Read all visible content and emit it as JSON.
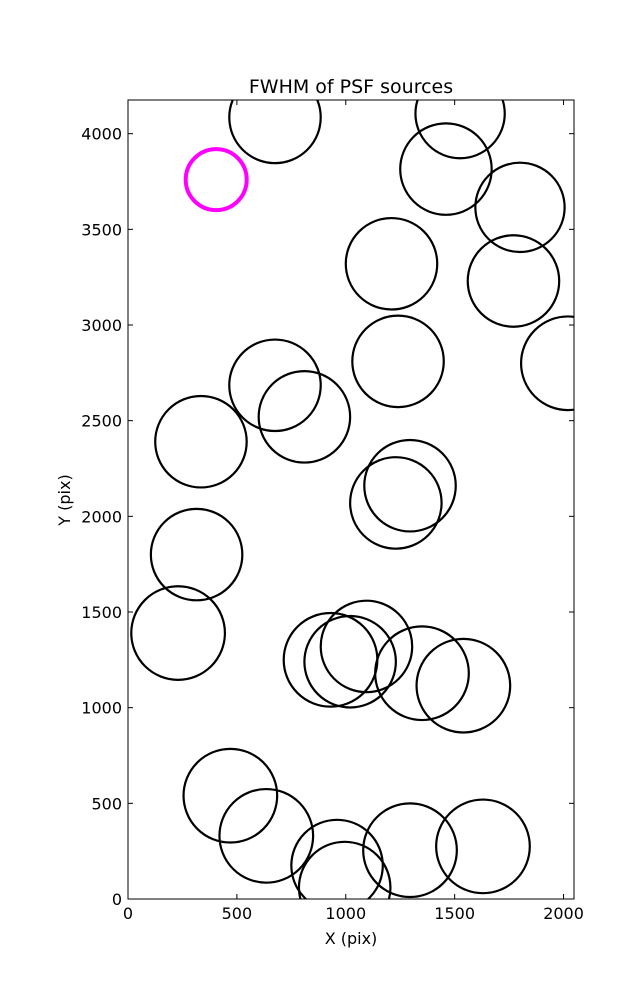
{
  "chart_data": {
    "type": "scatter",
    "title": "FWHM of PSF sources",
    "xlabel": "X (pix)",
    "ylabel": "Y (pix)",
    "xlim": [
      0,
      2048
    ],
    "ylim": [
      0,
      4176
    ],
    "x_ticks": [
      0,
      500,
      1000,
      1500,
      2000
    ],
    "y_ticks": [
      0,
      500,
      1000,
      1500,
      2000,
      2500,
      3000,
      3500,
      4000
    ],
    "grid": false,
    "circle_colors": {
      "normal": "#000000",
      "highlight": "#ff00ff"
    },
    "points": [
      {
        "x": 675,
        "y": 4085,
        "diameter": 420,
        "highlight": false
      },
      {
        "x": 1525,
        "y": 4105,
        "diameter": 410,
        "highlight": false
      },
      {
        "x": 1460,
        "y": 3815,
        "diameter": 420,
        "highlight": false
      },
      {
        "x": 1800,
        "y": 3615,
        "diameter": 410,
        "highlight": false
      },
      {
        "x": 405,
        "y": 3760,
        "diameter": 280,
        "highlight": true
      },
      {
        "x": 1210,
        "y": 3320,
        "diameter": 420,
        "highlight": false
      },
      {
        "x": 1770,
        "y": 3230,
        "diameter": 420,
        "highlight": false
      },
      {
        "x": 1240,
        "y": 2810,
        "diameter": 420,
        "highlight": false
      },
      {
        "x": 2020,
        "y": 2800,
        "diameter": 430,
        "highlight": false
      },
      {
        "x": 675,
        "y": 2685,
        "diameter": 420,
        "highlight": false
      },
      {
        "x": 810,
        "y": 2520,
        "diameter": 420,
        "highlight": false
      },
      {
        "x": 335,
        "y": 2390,
        "diameter": 420,
        "highlight": false
      },
      {
        "x": 1295,
        "y": 2160,
        "diameter": 420,
        "highlight": false
      },
      {
        "x": 1230,
        "y": 2070,
        "diameter": 420,
        "highlight": false
      },
      {
        "x": 315,
        "y": 1800,
        "diameter": 420,
        "highlight": false
      },
      {
        "x": 230,
        "y": 1390,
        "diameter": 430,
        "highlight": false
      },
      {
        "x": 1095,
        "y": 1320,
        "diameter": 420,
        "highlight": false
      },
      {
        "x": 930,
        "y": 1250,
        "diameter": 430,
        "highlight": false
      },
      {
        "x": 1020,
        "y": 1240,
        "diameter": 420,
        "highlight": false
      },
      {
        "x": 1350,
        "y": 1180,
        "diameter": 430,
        "highlight": false
      },
      {
        "x": 1540,
        "y": 1115,
        "diameter": 430,
        "highlight": false
      },
      {
        "x": 470,
        "y": 540,
        "diameter": 430,
        "highlight": false
      },
      {
        "x": 635,
        "y": 330,
        "diameter": 430,
        "highlight": false
      },
      {
        "x": 1630,
        "y": 275,
        "diameter": 430,
        "highlight": false
      },
      {
        "x": 1295,
        "y": 255,
        "diameter": 430,
        "highlight": false
      },
      {
        "x": 960,
        "y": 175,
        "diameter": 420,
        "highlight": false
      },
      {
        "x": 995,
        "y": 60,
        "diameter": 420,
        "highlight": false
      }
    ]
  }
}
